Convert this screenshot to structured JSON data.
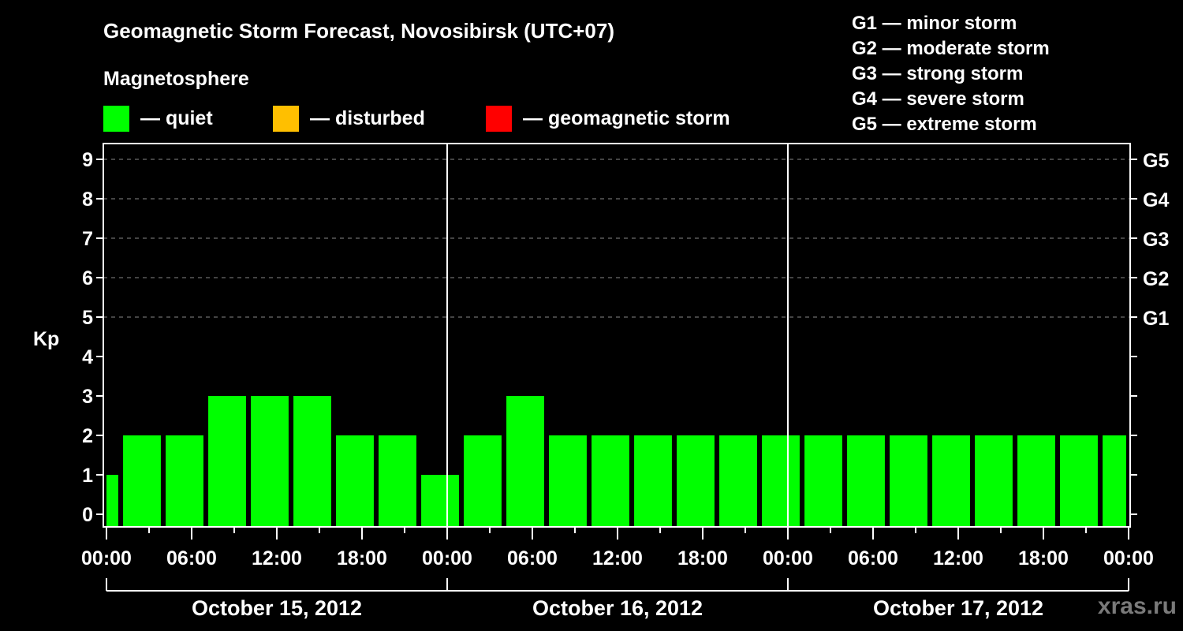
{
  "header": {
    "title": "Geomagnetic Storm Forecast, Novosibirsk (UTC+07)",
    "subtitle": "Magnetosphere"
  },
  "legend": [
    {
      "label": "— quiet",
      "color": "#00ff00",
      "x": 131
    },
    {
      "label": "— disturbed",
      "color": "#ffbf00",
      "x": 346
    },
    {
      "label": "— geomagnetic storm",
      "color": "#ff0000",
      "x": 616
    }
  ],
  "g_legend": [
    "G1 — minor storm",
    "G2 — moderate storm",
    "G3 — strong storm",
    "G4 — severe storm",
    "G5 — extreme storm"
  ],
  "watermark": "xras.ru",
  "colors": {
    "quiet": "#00ff00",
    "disturbed": "#ffbf00",
    "storm": "#ff0000",
    "grid": "#888888",
    "axis": "#ffffff"
  },
  "chart_data": {
    "type": "bar",
    "title": "Geomagnetic Storm Forecast, Novosibirsk (UTC+07)",
    "ylabel": "Kp",
    "ylim": [
      0,
      9
    ],
    "yticks": [
      0,
      1,
      2,
      3,
      4,
      5,
      6,
      7,
      8,
      9
    ],
    "right_axis_labels": [
      {
        "kp": 5,
        "label": "G1"
      },
      {
        "kp": 6,
        "label": "G2"
      },
      {
        "kp": 7,
        "label": "G3"
      },
      {
        "kp": 8,
        "label": "G4"
      },
      {
        "kp": 9,
        "label": "G5"
      }
    ],
    "grid": "dashed horizontal at Kp 5-9",
    "xtick_labels": [
      "00:00",
      "06:00",
      "12:00",
      "18:00",
      "00:00",
      "06:00",
      "12:00",
      "18:00",
      "00:00",
      "06:00",
      "12:00",
      "18:00",
      "00:00"
    ],
    "days": [
      "October 15, 2012",
      "October 16, 2012",
      "October 17, 2012"
    ],
    "bars": [
      {
        "start_h": 0,
        "end_h": 0.83,
        "kp": 1,
        "status": "quiet"
      },
      {
        "start_h": 1.17,
        "end_h": 3.83,
        "kp": 2,
        "status": "quiet"
      },
      {
        "start_h": 4.17,
        "end_h": 6.83,
        "kp": 2,
        "status": "quiet"
      },
      {
        "start_h": 7.17,
        "end_h": 9.83,
        "kp": 3,
        "status": "quiet"
      },
      {
        "start_h": 10.17,
        "end_h": 12.83,
        "kp": 3,
        "status": "quiet"
      },
      {
        "start_h": 13.17,
        "end_h": 15.83,
        "kp": 3,
        "status": "quiet"
      },
      {
        "start_h": 16.17,
        "end_h": 18.83,
        "kp": 2,
        "status": "quiet"
      },
      {
        "start_h": 19.17,
        "end_h": 21.83,
        "kp": 2,
        "status": "quiet"
      },
      {
        "start_h": 22.17,
        "end_h": 24.83,
        "kp": 1,
        "status": "quiet"
      },
      {
        "start_h": 25.17,
        "end_h": 27.83,
        "kp": 2,
        "status": "quiet"
      },
      {
        "start_h": 28.17,
        "end_h": 30.83,
        "kp": 3,
        "status": "quiet"
      },
      {
        "start_h": 31.17,
        "end_h": 33.83,
        "kp": 2,
        "status": "quiet"
      },
      {
        "start_h": 34.17,
        "end_h": 36.83,
        "kp": 2,
        "status": "quiet"
      },
      {
        "start_h": 37.17,
        "end_h": 39.83,
        "kp": 2,
        "status": "quiet"
      },
      {
        "start_h": 40.17,
        "end_h": 42.83,
        "kp": 2,
        "status": "quiet"
      },
      {
        "start_h": 43.17,
        "end_h": 45.83,
        "kp": 2,
        "status": "quiet"
      },
      {
        "start_h": 46.17,
        "end_h": 48.83,
        "kp": 2,
        "status": "quiet"
      },
      {
        "start_h": 49.17,
        "end_h": 51.83,
        "kp": 2,
        "status": "quiet"
      },
      {
        "start_h": 52.17,
        "end_h": 54.83,
        "kp": 2,
        "status": "quiet"
      },
      {
        "start_h": 55.17,
        "end_h": 57.83,
        "kp": 2,
        "status": "quiet"
      },
      {
        "start_h": 58.17,
        "end_h": 60.83,
        "kp": 2,
        "status": "quiet"
      },
      {
        "start_h": 61.17,
        "end_h": 63.83,
        "kp": 2,
        "status": "quiet"
      },
      {
        "start_h": 64.17,
        "end_h": 66.83,
        "kp": 2,
        "status": "quiet"
      },
      {
        "start_h": 67.17,
        "end_h": 69.83,
        "kp": 2,
        "status": "quiet"
      },
      {
        "start_h": 70.17,
        "end_h": 71.83,
        "kp": 2,
        "status": "quiet"
      }
    ]
  }
}
